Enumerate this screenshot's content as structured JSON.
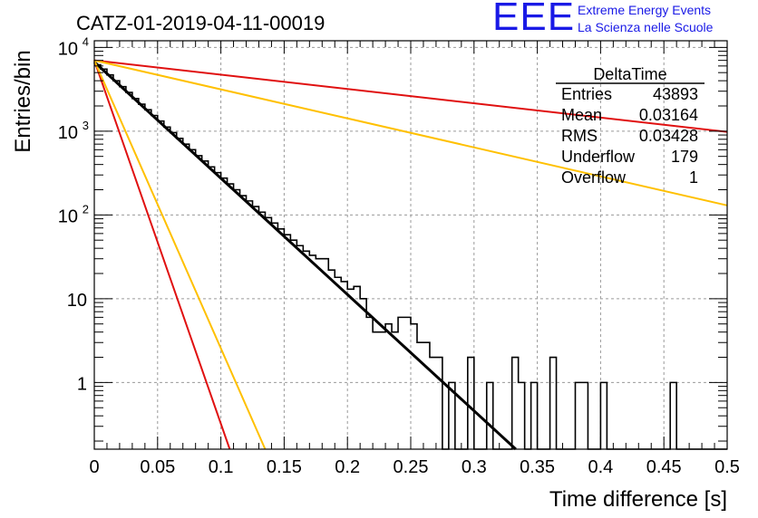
{
  "logo": {
    "mark": "EEE",
    "line1": "Extreme Energy Events",
    "line2": "La Scienza nelle Scuole",
    "color": "#1a1ae6"
  },
  "chart_data": {
    "type": "line",
    "title": "CATZ-01-2019-04-11-00019",
    "xlabel": "Time difference [s]",
    "ylabel": "Entries/bin",
    "xlim": [
      0,
      0.5
    ],
    "ylim": [
      0.16,
      12000
    ],
    "yscale": "log",
    "grid": true,
    "x_ticks": [
      "0",
      "0.05",
      "0.1",
      "0.15",
      "0.2",
      "0.25",
      "0.3",
      "0.35",
      "0.4",
      "0.45",
      "0.5"
    ],
    "y_ticks": [
      {
        "value": 1,
        "label": "1"
      },
      {
        "value": 10,
        "label": "10"
      },
      {
        "value": 100,
        "label": "10",
        "exp": "2"
      },
      {
        "value": 1000,
        "label": "10",
        "exp": "3"
      },
      {
        "value": 10000,
        "label": "10",
        "exp": "4"
      }
    ],
    "stats_box": {
      "title": "DeltaTime",
      "position": "top-right",
      "rows": [
        {
          "label": "Entries",
          "value": "43893"
        },
        {
          "label": "Mean",
          "value": "0.03164"
        },
        {
          "label": "RMS",
          "value": "0.03428"
        },
        {
          "label": "Underflow",
          "value": "179"
        },
        {
          "label": "Overflow",
          "value": "1"
        }
      ]
    },
    "histogram": {
      "color": "#000000",
      "bin_width": 0.005,
      "bin_start": 0,
      "values": [
        6200,
        5500,
        4700,
        4000,
        3400,
        2900,
        2450,
        2100,
        1800,
        1540,
        1320,
        1120,
        960,
        820,
        700,
        600,
        510,
        440,
        375,
        320,
        275,
        235,
        200,
        170,
        147,
        126,
        108,
        93,
        80,
        68,
        58,
        50,
        43,
        37,
        33,
        30,
        30,
        22,
        18,
        16,
        13,
        14,
        10,
        6,
        4,
        4,
        5,
        4,
        6,
        6,
        5,
        3,
        3,
        2,
        2,
        0,
        1,
        0,
        0,
        2,
        0,
        0,
        1,
        0,
        0,
        0,
        2,
        1,
        0,
        1,
        0,
        0,
        2,
        0,
        0,
        0,
        1,
        1,
        0,
        0,
        1,
        0,
        0,
        0,
        0,
        0,
        0,
        0,
        0,
        0,
        0,
        1,
        0,
        0,
        0,
        0,
        0,
        0,
        0,
        0
      ]
    },
    "fits": [
      {
        "color": "#000000",
        "x0": 0,
        "y0": 6700,
        "x1": 0.333,
        "y1": 0.16
      },
      {
        "color": "#e01010",
        "x0": 0,
        "y0": 7000,
        "x1": 0.5,
        "y1": 980
      },
      {
        "color": "#ffc000",
        "x0": 0,
        "y0": 7000,
        "x1": 0.5,
        "y1": 130
      },
      {
        "color": "#e01010",
        "x0": 0,
        "y0": 7000,
        "x1": 0.107,
        "y1": 0.16
      },
      {
        "color": "#ffc000",
        "x0": 0,
        "y0": 7000,
        "x1": 0.135,
        "y1": 0.16
      }
    ]
  }
}
